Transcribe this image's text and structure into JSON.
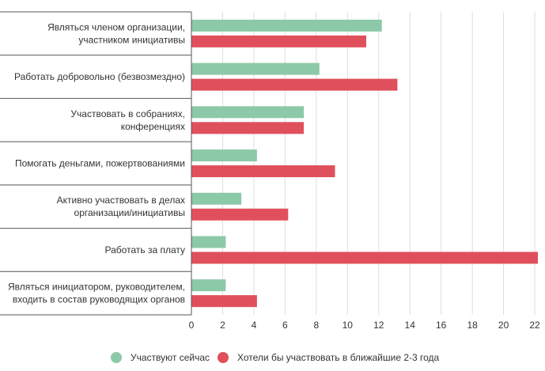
{
  "chart_data": {
    "type": "bar",
    "orientation": "horizontal",
    "categories": [
      [
        "Являться членом организации,",
        "участником инициативы"
      ],
      [
        "Работать добровольно (безвозмездно)"
      ],
      [
        "Участвовать в собраниях,",
        "конференциях"
      ],
      [
        "Помогать деньгами, пожертвованиями"
      ],
      [
        "Активно участвовать в делах",
        "организации/инициативы"
      ],
      [
        "Работать за плату"
      ],
      [
        "Являться инициатором, руководителем,",
        "входить в состав руководящих органов"
      ]
    ],
    "series": [
      {
        "name": "Участвуют сейчас",
        "color": "#8cc9a8",
        "values": [
          12.2,
          8.2,
          7.2,
          4.2,
          3.2,
          2.2,
          2.2
        ]
      },
      {
        "name": "Хотели бы участвовать в ближайшие 2-3 года",
        "color": "#e0505c",
        "values": [
          11.2,
          13.2,
          7.2,
          9.2,
          6.2,
          22.2,
          4.2
        ]
      }
    ],
    "xticks": [
      0,
      2,
      4,
      6,
      8,
      10,
      12,
      14,
      16,
      18,
      20,
      22
    ],
    "xlim": [
      0,
      22.2
    ],
    "grid": true,
    "legend_position": "bottom"
  }
}
